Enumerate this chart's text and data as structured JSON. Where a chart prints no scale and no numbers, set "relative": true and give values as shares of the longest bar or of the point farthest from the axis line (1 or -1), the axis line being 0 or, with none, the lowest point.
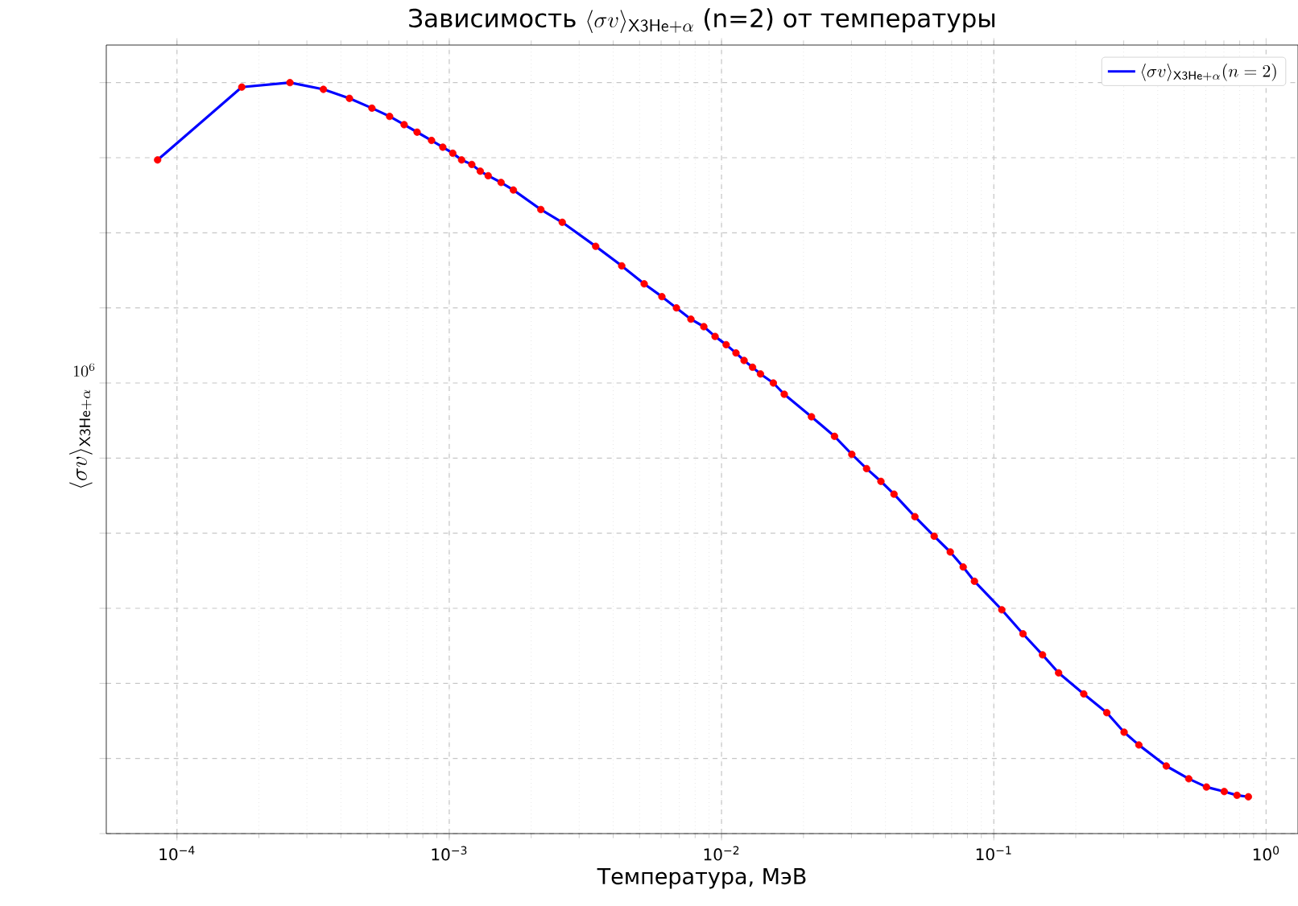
{
  "chart_data": {
    "type": "line",
    "title": "\\text{Зависимость }\\langle\\sigma v\\rangle_{\\mathsf{X3He}+\\alpha}\\text{ (n=2) от температуры}",
    "xlabel": "Температура, МэВ",
    "ylabel": "\\langle\\sigma v\\rangle_{\\mathsf{X3He}+\\alpha}",
    "annotations": [
      "10^{6}"
    ],
    "relative": true,
    "x": [
      8.49e-05,
      0.000173,
      0.00026,
      0.000345,
      0.00043,
      0.00052,
      0.000604,
      0.000683,
      0.000762,
      0.000861,
      0.000947,
      0.00103,
      0.00111,
      0.00121,
      0.0013,
      0.00139,
      0.00155,
      0.00172,
      0.00217,
      0.0026,
      0.00345,
      0.0043,
      0.0052,
      0.00604,
      0.00683,
      0.00772,
      0.00861,
      0.00947,
      0.0104,
      0.0113,
      0.0121,
      0.013,
      0.0139,
      0.0155,
      0.017,
      0.0214,
      0.026,
      0.0301,
      0.0341,
      0.0385,
      0.043,
      0.0513,
      0.0604,
      0.0692,
      0.0772,
      0.0849,
      0.107,
      0.128,
      0.151,
      0.173,
      0.214,
      0.26,
      0.301,
      0.341,
      0.43,
      0.52,
      0.604,
      0.702,
      0.782,
      0.861
    ],
    "series": [
      {
        "name": "\\langle\\sigma v\\rangle_{\\mathsf{X3He}+\\alpha}(n=2)",
        "color": "#0000ff",
        "marker": "none",
        "values": [
          0.897,
          0.994,
          1,
          0.991,
          0.979,
          0.966,
          0.955,
          0.944,
          0.934,
          0.923,
          0.914,
          0.906,
          0.897,
          0.891,
          0.882,
          0.876,
          0.867,
          0.857,
          0.831,
          0.814,
          0.782,
          0.756,
          0.732,
          0.715,
          0.7,
          0.685,
          0.675,
          0.662,
          0.651,
          0.64,
          0.63,
          0.621,
          0.612,
          0.6,
          0.585,
          0.555,
          0.529,
          0.505,
          0.486,
          0.469,
          0.452,
          0.422,
          0.396,
          0.375,
          0.355,
          0.336,
          0.298,
          0.266,
          0.238,
          0.214,
          0.186,
          0.161,
          0.135,
          0.118,
          0.09,
          0.073,
          0.062,
          0.056,
          0.051,
          0.049
        ]
      },
      {
        "type": "scatter",
        "color": "#ff0000",
        "marker": "circle",
        "values": [
          0.897,
          0.994,
          1,
          0.991,
          0.979,
          0.966,
          0.955,
          0.944,
          0.934,
          0.923,
          0.914,
          0.906,
          0.897,
          0.891,
          0.882,
          0.876,
          0.867,
          0.857,
          0.831,
          0.814,
          0.782,
          0.756,
          0.732,
          0.715,
          0.7,
          0.685,
          0.675,
          0.662,
          0.651,
          0.64,
          0.63,
          0.621,
          0.612,
          0.6,
          0.585,
          0.555,
          0.529,
          0.505,
          0.486,
          0.469,
          0.452,
          0.422,
          0.396,
          0.375,
          0.355,
          0.336,
          0.298,
          0.266,
          0.238,
          0.214,
          0.186,
          0.161,
          0.135,
          0.118,
          0.09,
          0.073,
          0.062,
          0.056,
          0.051,
          0.049
        ]
      }
    ],
    "log": "x",
    "grid": true,
    "legend": "top right",
    "xlim": [
      5.5e-05,
      1.31
    ],
    "xticks": [
      {
        "value": 0.0001,
        "label": "10$^{−4}$"
      },
      {
        "value": 0.001,
        "label": "10$^{−3}$"
      },
      {
        "value": 0.01,
        "label": "10$^{−2}$"
      },
      {
        "value": 0.1,
        "label": "10$^{−1}$"
      },
      {
        "value": 1,
        "label": "10$^{0}$"
      }
    ]
  }
}
